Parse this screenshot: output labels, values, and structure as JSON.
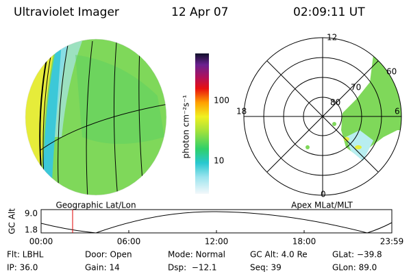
{
  "header": {
    "title": "Ultraviolet Imager",
    "date": "12 Apr 07",
    "time": "02:09:11 UT"
  },
  "left_panel": {
    "caption": "Geographic Lat/Lon"
  },
  "colorbar": {
    "label": "photon cm⁻²s⁻¹",
    "ticks": [
      "100",
      "10"
    ]
  },
  "polar_panel": {
    "caption": "Apex MLat/MLT",
    "hour_labels": [
      "12",
      "18",
      "6",
      "0"
    ],
    "lat_labels": [
      "60",
      "70",
      "80"
    ]
  },
  "altitude_plot": {
    "axis_label": "GC Alt",
    "yticks": [
      "9.0",
      "1.8"
    ],
    "xticks": [
      "00:00",
      "06:00",
      "12:00",
      "18:00",
      "23:59"
    ]
  },
  "footer": {
    "rows": [
      [
        "Flt: LBHL",
        "Door: Open",
        "Mode: Normal",
        "GC Alt: 4.0 Re",
        "GLat: −39.8"
      ],
      [
        "IP: 36.0",
        "Gain: 14",
        "Dsp:  −12.1",
        "Seq: 39",
        "GLon: 89.0"
      ]
    ]
  }
}
